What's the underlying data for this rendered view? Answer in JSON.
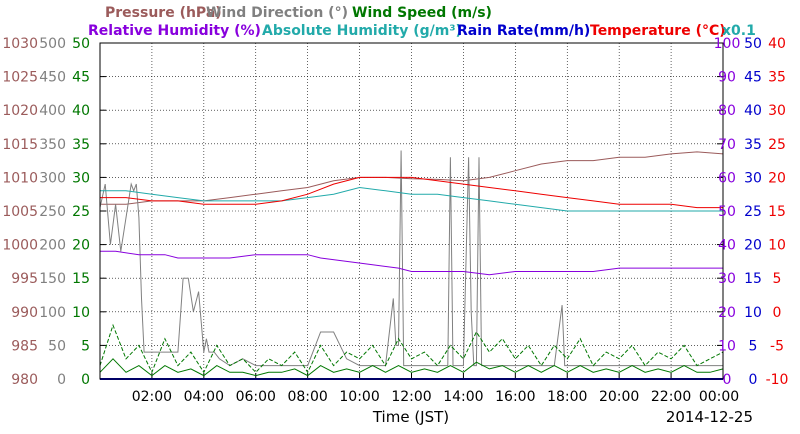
{
  "chart_data": {
    "type": "line",
    "legend": {
      "row1": [
        {
          "name": "Pressure (hPa)",
          "color": "#9b5b5b"
        },
        {
          "name": "Wind Direction (°)",
          "color": "#808080"
        },
        {
          "name": "Wind Speed (m/s)",
          "color": "#007700"
        }
      ],
      "row2": [
        {
          "name": "Relative Humidity (%)",
          "color": "#8800dd"
        },
        {
          "name": "Absolute Humidity (g/m³)",
          "color": "#22aaaa"
        },
        {
          "name": "Rain Rate(mm/h)",
          "color": "#0000cc"
        },
        {
          "name": "Temperature (°C)",
          "color": "#ee0000"
        },
        {
          "name": "x0.1",
          "color": "#22aaaa"
        }
      ]
    },
    "xlabel": "Time (JST)",
    "date": "2014-12-25",
    "x_ticks": [
      "02:00",
      "04:00",
      "06:00",
      "08:00",
      "10:00",
      "12:00",
      "14:00",
      "16:00",
      "18:00",
      "20:00",
      "22:00",
      "00:00"
    ],
    "x_range_hours": [
      0,
      24
    ],
    "left_axes": [
      {
        "name": "Pressure",
        "color": "#9b5b5b",
        "ticks": [
          "1030",
          "1025",
          "1020",
          "1015",
          "1010",
          "1005",
          "1000",
          "995",
          "990",
          "985",
          "980"
        ]
      },
      {
        "name": "Wind Direction",
        "color": "#808080",
        "ticks": [
          "500",
          "450",
          "400",
          "350",
          "300",
          "250",
          "200",
          "150",
          "100",
          "50",
          "0"
        ]
      },
      {
        "name": "Wind Speed",
        "color": "#007700",
        "ticks": [
          "50",
          "45",
          "40",
          "35",
          "30",
          "25",
          "20",
          "15",
          "10",
          "5",
          "0"
        ]
      }
    ],
    "right_axes": [
      {
        "name": "Relative Humidity",
        "color": "#8800dd",
        "ticks": [
          "100",
          "90",
          "80",
          "70",
          "60",
          "50",
          "40",
          "30",
          "20",
          "10",
          "0"
        ]
      },
      {
        "name": "Rain Rate",
        "color": "#0000cc",
        "ticks": [
          "50",
          "45",
          "40",
          "35",
          "30",
          "25",
          "20",
          "15",
          "10",
          "5",
          "0"
        ]
      },
      {
        "name": "Temperature",
        "color": "#ee0000",
        "ticks": [
          "40",
          "35",
          "30",
          "25",
          "20",
          "15",
          "10",
          "5",
          "0",
          "-5",
          "-10"
        ]
      }
    ],
    "series": [
      {
        "name": "Pressure (hPa)",
        "axis": "Pressure",
        "color": "#9b5b5b",
        "style": "solid",
        "x": [
          0,
          1,
          2,
          3,
          4,
          5,
          6,
          7,
          8,
          9,
          10,
          11,
          12,
          13,
          14,
          15,
          16,
          17,
          18,
          19,
          20,
          21,
          22,
          23,
          24
        ],
        "y": [
          1006,
          1006,
          1006.5,
          1006.5,
          1006.5,
          1007,
          1007.5,
          1008,
          1008.5,
          1009.5,
          1010,
          1010,
          1009.8,
          1009.7,
          1009.5,
          1010,
          1011,
          1012,
          1012.5,
          1012.5,
          1013,
          1013,
          1013.5,
          1013.8,
          1013.5
        ]
      },
      {
        "name": "Wind Direction (°)",
        "axis": "Wind Direction",
        "color": "#808080",
        "style": "solid",
        "x": [
          0,
          0.2,
          0.4,
          0.6,
          0.8,
          1.0,
          1.2,
          1.3,
          1.4,
          1.5,
          1.6,
          1.7,
          2.0,
          2.5,
          2.6,
          2.8,
          3.0,
          3.2,
          3.4,
          3.6,
          3.8,
          4.0,
          4.1,
          4.2,
          4.4,
          4.6,
          5.0,
          5.5,
          6.0,
          6.5,
          7.0,
          7.5,
          8.0,
          8.5,
          9.0,
          9.5,
          10.0,
          10.5,
          11.0,
          11.3,
          11.4,
          11.5,
          11.6,
          11.7,
          11.8,
          11.9,
          12.0,
          12.5,
          13.0,
          13.4,
          13.5,
          13.6,
          13.8,
          14.0,
          14.2,
          14.3,
          14.4,
          14.5,
          14.6,
          14.7,
          14.8,
          14.9,
          15.0,
          15.5,
          16.0,
          16.5,
          17.0,
          17.5,
          17.8,
          17.9,
          18.0,
          18.5,
          19.0,
          19.5,
          20.0,
          20.5,
          21.0,
          21.5,
          22.0,
          22.5,
          23.0,
          23.5,
          24.0
        ],
        "y": [
          255,
          290,
          200,
          260,
          190,
          240,
          290,
          280,
          290,
          240,
          120,
          40,
          40,
          40,
          40,
          40,
          40,
          150,
          150,
          100,
          130,
          40,
          60,
          40,
          40,
          30,
          20,
          30,
          20,
          20,
          20,
          20,
          20,
          70,
          70,
          30,
          20,
          20,
          20,
          120,
          50,
          50,
          340,
          20,
          20,
          20,
          20,
          20,
          20,
          20,
          330,
          20,
          20,
          20,
          330,
          100,
          20,
          20,
          330,
          20,
          20,
          20,
          20,
          20,
          20,
          20,
          20,
          20,
          110,
          20,
          20,
          20,
          20,
          20,
          20,
          20,
          20,
          20,
          20,
          20,
          20,
          20,
          20
        ]
      },
      {
        "name": "Wind Speed (m/s)",
        "axis": "Wind Speed",
        "color": "#007700",
        "style": "dashed",
        "x": [
          0,
          0.5,
          1,
          1.5,
          2,
          2.5,
          3,
          3.5,
          4,
          4.5,
          5,
          5.5,
          6,
          6.5,
          7,
          7.5,
          8,
          8.5,
          9,
          9.5,
          10,
          10.5,
          11,
          11.5,
          12,
          12.5,
          13,
          13.5,
          14,
          14.5,
          15,
          15.5,
          16,
          16.5,
          17,
          17.5,
          18,
          18.5,
          19,
          19.5,
          20,
          20.5,
          21,
          21.5,
          22,
          22.5,
          23,
          23.5,
          24
        ],
        "y": [
          2,
          8,
          3,
          5,
          1,
          6,
          2,
          4,
          1,
          5,
          2,
          3,
          1,
          3,
          2,
          4,
          1,
          5,
          2,
          4,
          3,
          5,
          2,
          6,
          3,
          4,
          2,
          5,
          3,
          7,
          4,
          6,
          3,
          5,
          2,
          5,
          3,
          6,
          2,
          4,
          3,
          5,
          2,
          4,
          3,
          5,
          2,
          3,
          4
        ]
      },
      {
        "name": "Wind Speed (m/s) mean",
        "axis": "Wind Speed",
        "color": "#007700",
        "style": "solid",
        "x": [
          0,
          0.5,
          1,
          1.5,
          2,
          2.5,
          3,
          3.5,
          4,
          4.5,
          5,
          5.5,
          6,
          6.5,
          7,
          7.5,
          8,
          8.5,
          9,
          9.5,
          10,
          10.5,
          11,
          11.5,
          12,
          12.5,
          13,
          13.5,
          14,
          14.5,
          15,
          15.5,
          16,
          16.5,
          17,
          17.5,
          18,
          18.5,
          19,
          19.5,
          20,
          20.5,
          21,
          21.5,
          22,
          22.5,
          23,
          23.5,
          24
        ],
        "y": [
          1,
          3,
          1,
          2,
          0.5,
          2,
          1,
          1.5,
          0.5,
          2,
          1,
          1,
          0.5,
          1,
          1,
          1.5,
          0.5,
          2,
          1,
          1.5,
          1,
          2,
          1,
          2,
          1,
          1.5,
          1,
          2,
          1,
          2.5,
          1.5,
          2,
          1,
          2,
          1,
          2,
          1,
          2,
          1,
          1.5,
          1,
          2,
          1,
          1.5,
          1,
          2,
          1,
          1,
          1.5
        ]
      },
      {
        "name": "Relative Humidity (%)",
        "axis": "Relative Humidity",
        "color": "#8800dd",
        "style": "solid",
        "x": [
          0,
          0.6,
          1.5,
          2.0,
          2.5,
          3.0,
          4.0,
          5.0,
          6.0,
          7.0,
          8.0,
          8.5,
          9.5,
          10.5,
          11.5,
          12.0,
          13.0,
          14.0,
          15.0,
          16.0,
          17.0,
          18.0,
          19.0,
          20.0,
          21.0,
          22.0,
          23.0,
          24.0
        ],
        "y": [
          38,
          38,
          37,
          37,
          37,
          36,
          36,
          36,
          37,
          37,
          37,
          36,
          35,
          34,
          33,
          32,
          32,
          32,
          31,
          32,
          32,
          32,
          32,
          33,
          33,
          33,
          33,
          33
        ]
      },
      {
        "name": "Absolute Humidity (g/m³) x0.1",
        "axis": "Relative Humidity",
        "color": "#22aaaa",
        "style": "solid",
        "x": [
          0,
          1,
          2,
          3,
          4,
          5,
          6,
          7,
          8,
          9,
          10,
          11,
          12,
          13,
          14,
          15,
          16,
          17,
          18,
          19,
          20,
          21,
          22,
          23,
          24
        ],
        "y": [
          56,
          56,
          55,
          54,
          53,
          53,
          53,
          53,
          54,
          55,
          57,
          56,
          55,
          55,
          54,
          53,
          52,
          51,
          50,
          50,
          50,
          50,
          50,
          50,
          50
        ]
      },
      {
        "name": "Rain Rate(mm/h)",
        "axis": "Rain Rate",
        "color": "#0000cc",
        "style": "solid",
        "x": [
          0,
          24
        ],
        "y": [
          0,
          0
        ]
      },
      {
        "name": "Temperature (°C)",
        "axis": "Temperature",
        "color": "#ee0000",
        "style": "solid",
        "x": [
          0,
          1,
          2,
          3,
          4,
          5,
          6,
          7,
          8,
          9,
          10,
          11,
          12,
          13,
          14,
          15,
          16,
          17,
          18,
          19,
          20,
          21,
          22,
          23,
          24
        ],
        "y": [
          17,
          17,
          16.5,
          16.5,
          16,
          16,
          16,
          16.5,
          17.5,
          19,
          20,
          20,
          20,
          19.5,
          19,
          18.5,
          18,
          17.5,
          17,
          16.5,
          16,
          16,
          16,
          15.5,
          15.5
        ]
      }
    ]
  }
}
